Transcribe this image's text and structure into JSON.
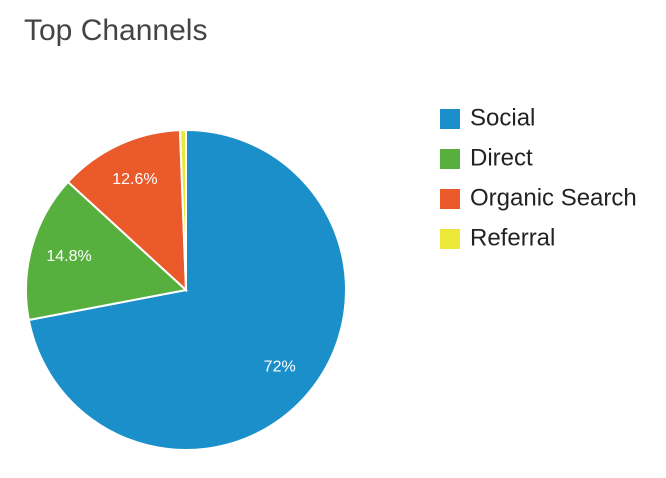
{
  "chart_data": {
    "type": "pie",
    "title": "Top Channels",
    "categories": [
      "Social",
      "Direct",
      "Organic Search",
      "Referral"
    ],
    "values": [
      72,
      14.8,
      12.6,
      0.6
    ],
    "value_labels": [
      "72%",
      "14.8%",
      "12.6%",
      null
    ],
    "colors": [
      "#1a8fc9",
      "#57b03e",
      "#eb5a2b",
      "#ebe83a"
    ],
    "legend": "right"
  }
}
